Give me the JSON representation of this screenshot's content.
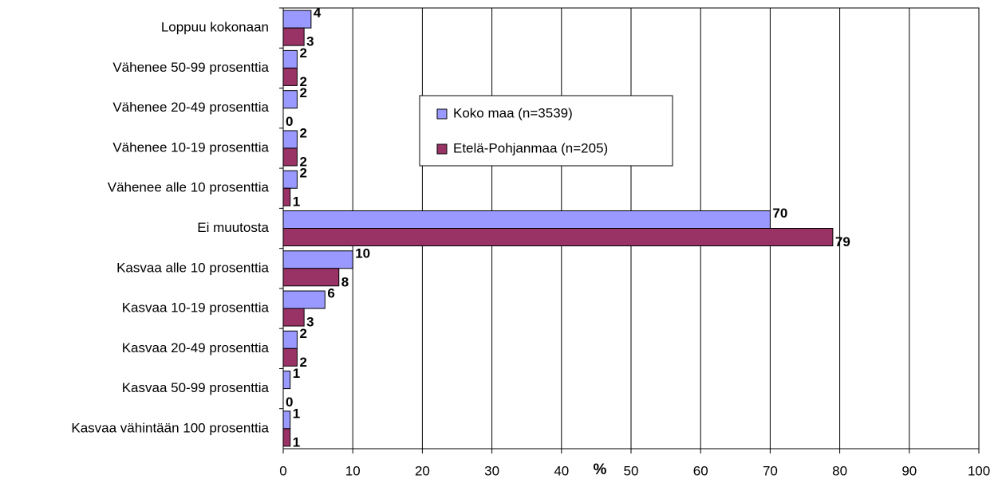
{
  "chart_data": {
    "type": "hbar",
    "categories": [
      "Loppuu kokonaan",
      "Vähenee 50-99 prosenttia",
      "Vähenee 20-49 prosenttia",
      "Vähenee 10-19 prosenttia",
      "Vähenee alle 10 prosenttia",
      "Ei muutosta",
      "Kasvaa alle 10 prosenttia",
      "Kasvaa 10-19 prosenttia",
      "Kasvaa 20-49 prosenttia",
      "Kasvaa 50-99 prosenttia",
      "Kasvaa vähintään 100 prosenttia"
    ],
    "series": [
      {
        "name": "Koko maa (n=3539)",
        "color": "#9999ff",
        "values": [
          4,
          2,
          2,
          2,
          2,
          70,
          10,
          6,
          2,
          1,
          1
        ]
      },
      {
        "name": "Etelä-Pohjanmaa (n=205)",
        "color": "#993366",
        "values": [
          3,
          2,
          0,
          2,
          1,
          79,
          8,
          3,
          2,
          0,
          1
        ]
      }
    ],
    "x_label": "%",
    "xlim": [
      0,
      100
    ],
    "xticks": [
      0,
      10,
      20,
      30,
      40,
      50,
      60,
      70,
      80,
      90,
      100
    ],
    "grid": true
  }
}
